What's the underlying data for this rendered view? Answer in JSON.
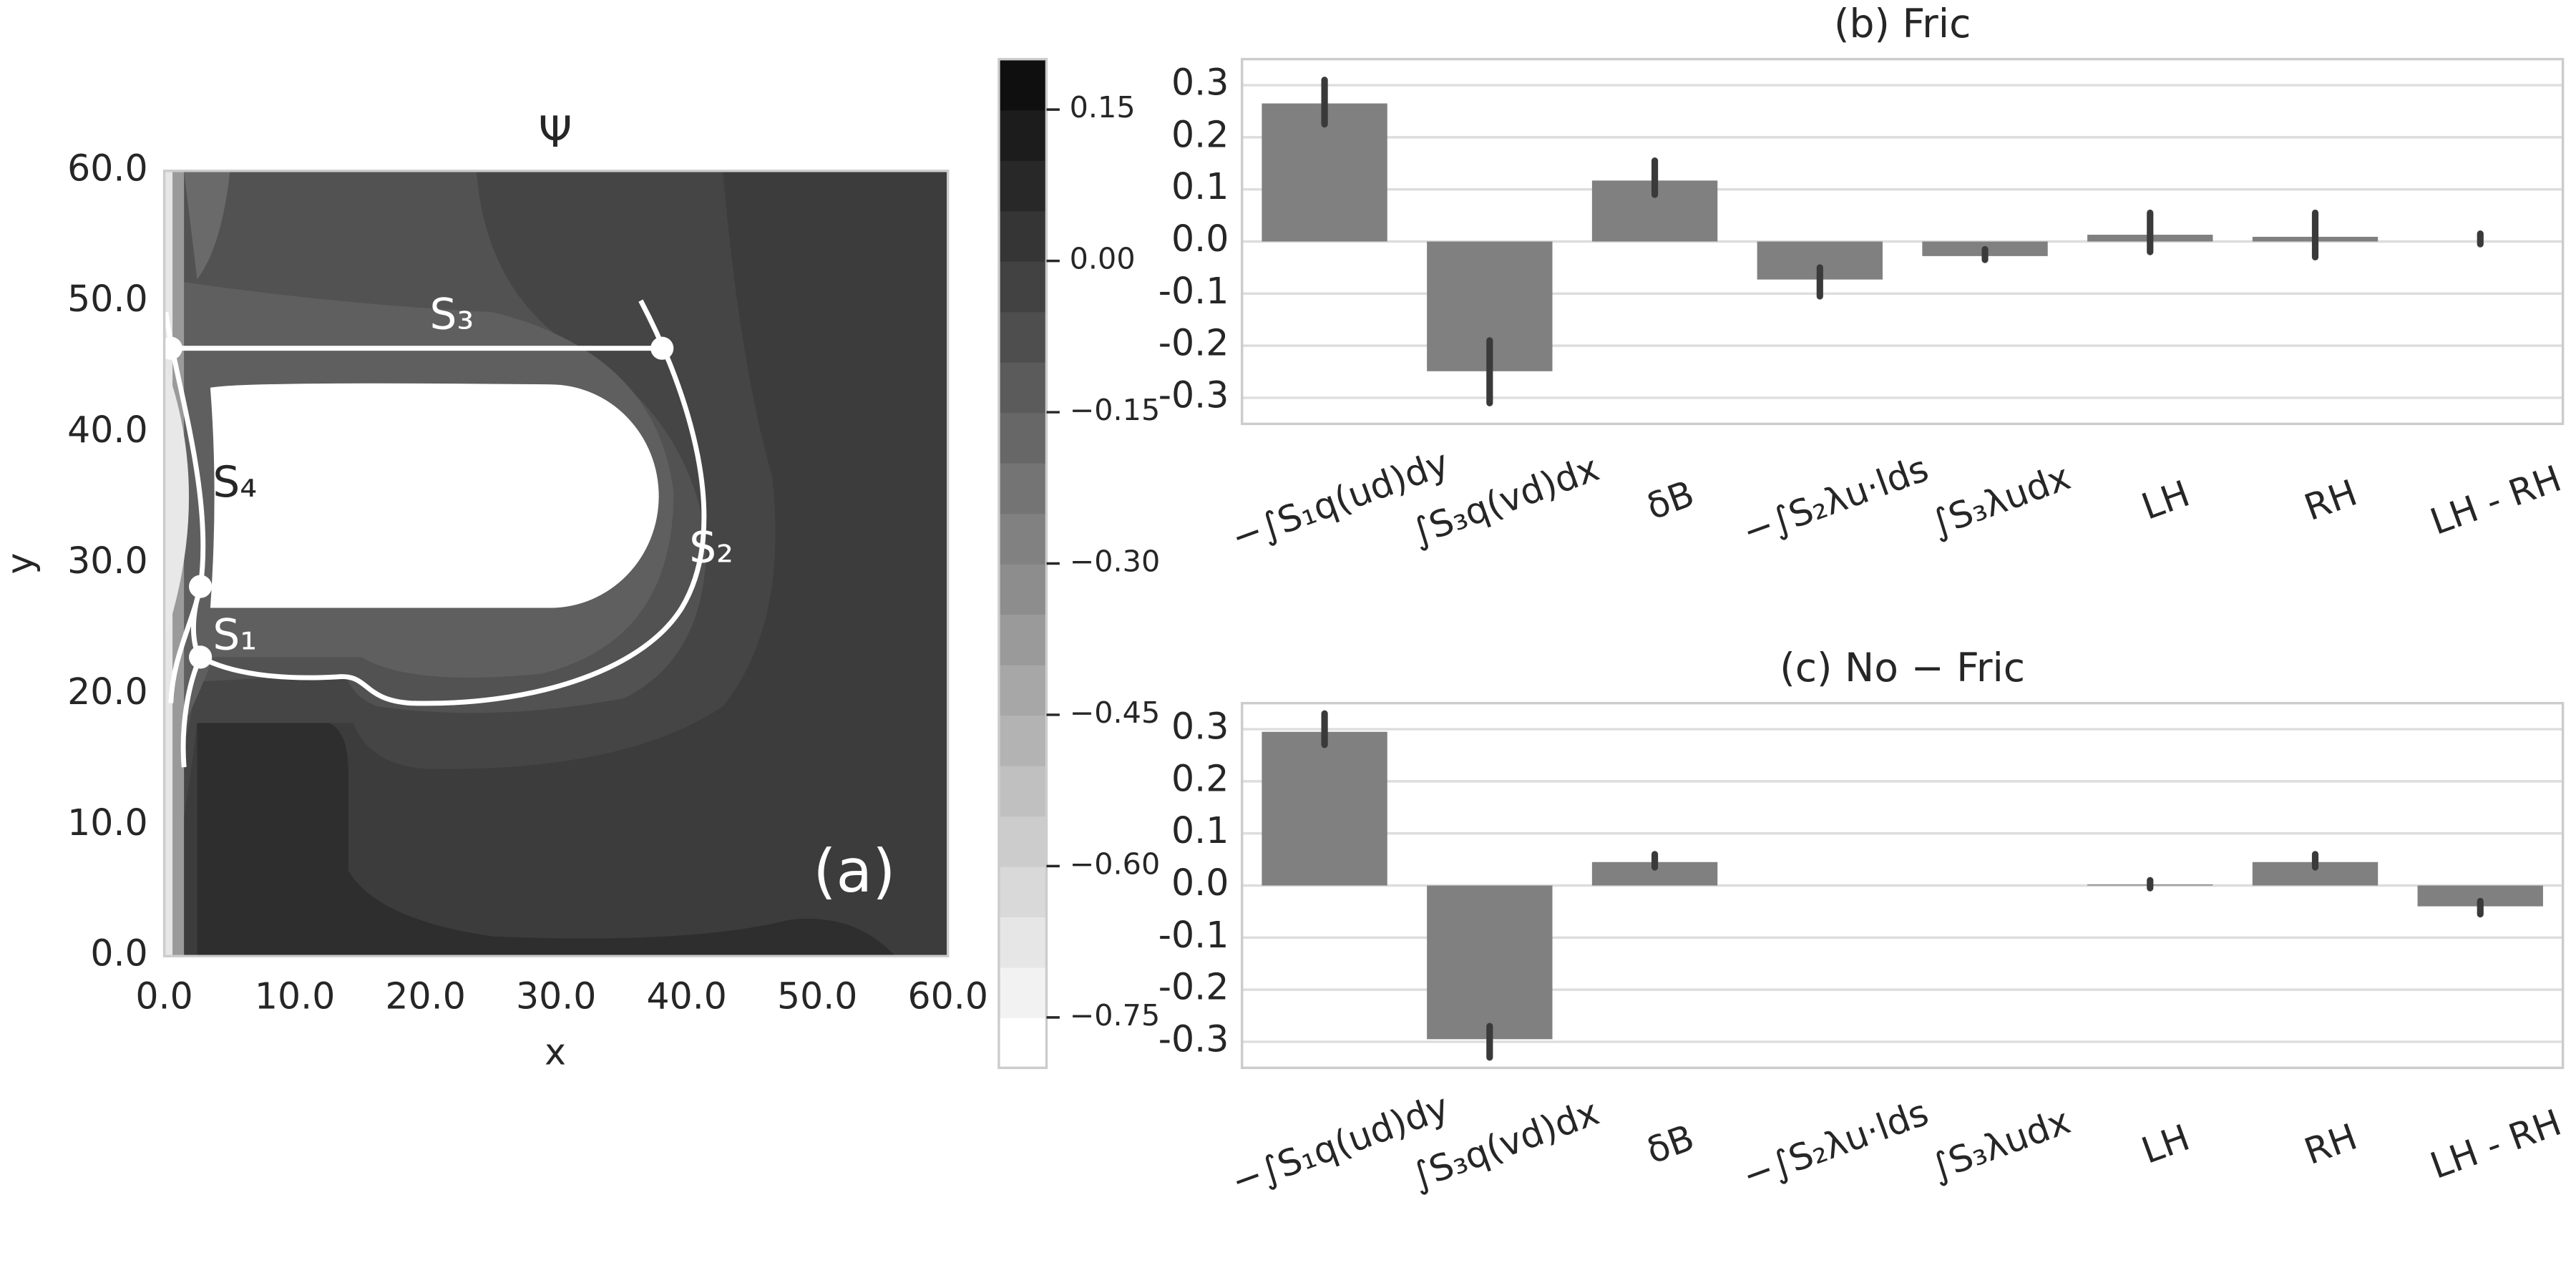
{
  "chart_data": [
    {
      "type": "contour",
      "title": "Ψ",
      "xlabel": "x",
      "ylabel": "y",
      "xlim": [
        0,
        60
      ],
      "ylim": [
        0,
        60
      ],
      "xticks": [
        {
          "value": 0,
          "label": "0.0"
        },
        {
          "value": 10,
          "label": "10.0"
        },
        {
          "value": 20,
          "label": "20.0"
        },
        {
          "value": 30,
          "label": "30.0"
        },
        {
          "value": 40,
          "label": "40.0"
        },
        {
          "value": 50,
          "label": "50.0"
        },
        {
          "value": 60,
          "label": "60.0"
        }
      ],
      "yticks": [
        {
          "value": 0,
          "label": "0.0"
        },
        {
          "value": 10,
          "label": "10.0"
        },
        {
          "value": 20,
          "label": "20.0"
        },
        {
          "value": 30,
          "label": "30.0"
        },
        {
          "value": 40,
          "label": "40.0"
        },
        {
          "value": 50,
          "label": "50.0"
        },
        {
          "value": 60,
          "label": "60.0"
        }
      ],
      "annotations": [
        "(a)",
        "S₁",
        "S₂",
        "S₃",
        "S₄"
      ],
      "colorbar": {
        "lim": [
          -0.8,
          0.2
        ],
        "ticks": [
          0.15,
          {
            "value": 0,
            "label": "0.00"
          },
          {
            "value": -0.15,
            "label": "−0.15"
          },
          {
            "value": -0.3,
            "label": "−0.30"
          },
          {
            "value": -0.45,
            "label": "−0.45"
          },
          {
            "value": -0.6,
            "label": "−0.60"
          },
          {
            "value": -0.75,
            "label": "−0.75"
          }
        ]
      }
    },
    {
      "type": "bar",
      "title": "(b) Fric",
      "categories": [
        "−∫S₁q(ud)dy",
        "∫S₃q(vd)dx",
        "δB",
        "−∫S₂λu·lds",
        "∫S₃λudx",
        "LH",
        "RH",
        "LH - RH"
      ],
      "values": [
        0.265,
        -0.249,
        0.117,
        -0.073,
        -0.028,
        0.013,
        0.009,
        0.0
      ],
      "ci": [
        [
          0.225,
          0.31
        ],
        [
          -0.31,
          -0.19
        ],
        [
          0.09,
          0.155
        ],
        [
          -0.105,
          -0.05
        ],
        [
          -0.035,
          -0.015
        ],
        [
          -0.02,
          0.055
        ],
        [
          -0.03,
          0.055
        ],
        [
          -0.005,
          0.015
        ]
      ],
      "color": "#808080",
      "error_color": "#3a3a3a",
      "ylim": [
        -0.35,
        0.35
      ],
      "yticks": [
        0.3,
        0.2,
        0.1,
        {
          "value": 0,
          "label": "0.0"
        },
        -0.1,
        -0.2,
        -0.3
      ],
      "grid": true
    },
    {
      "type": "bar",
      "title": "(c) No − Fric",
      "categories": [
        "−∫S₁q(ud)dy",
        "∫S₃q(vd)dx",
        "δB",
        "−∫S₂λu·lds",
        "∫S₃λudx",
        "LH",
        "RH",
        "LH - RH"
      ],
      "values": [
        0.295,
        -0.295,
        0.045,
        0,
        0,
        0.002,
        0.045,
        -0.04
      ],
      "ci": [
        [
          0.27,
          0.33
        ],
        [
          -0.33,
          -0.27
        ],
        [
          0.035,
          0.06
        ],
        [
          0,
          0
        ],
        [
          0,
          0
        ],
        [
          -0.005,
          0.01
        ],
        [
          0.035,
          0.06
        ],
        [
          -0.055,
          -0.03
        ]
      ],
      "color": "#808080",
      "error_color": "#3a3a3a",
      "ylim": [
        -0.35,
        0.35
      ],
      "yticks": [
        0.3,
        0.2,
        0.1,
        {
          "value": 0,
          "label": "0.0"
        },
        -0.1,
        -0.2,
        -0.3
      ],
      "grid": true
    }
  ]
}
